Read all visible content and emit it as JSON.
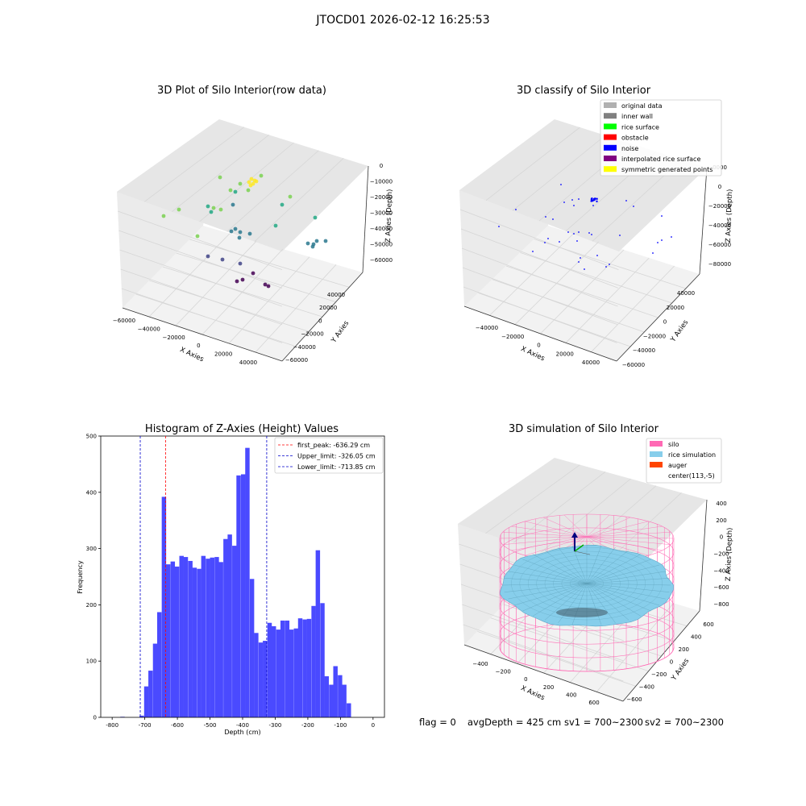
{
  "suptitle": "JTOCD01 2026-02-12 16:25:53",
  "footer": {
    "flag": "flag = 0",
    "avg_depth": "avgDepth = 425 cm",
    "sv1": "sv1 = 700~2300",
    "sv2": "sv2 = 700~2300"
  },
  "colors": {
    "histogram_bar": "#4a4aff",
    "first_peak_line": "#ff0000",
    "limit_lines": "#0000cc",
    "silo": "#ff69b4",
    "rice_simulation": "#87ceeb",
    "auger": "#ff4500",
    "noise": "#0000ff"
  },
  "chart_data": [
    {
      "type": "scatter3d",
      "title": "3D Plot of Silo Interior(row data)",
      "xlabel": "X Axies",
      "ylabel": "Y Axies",
      "zlabel": "Z Axies (Depth)",
      "x_ticks": [
        "−60000",
        "−40000",
        "−20000",
        "0",
        "20000",
        "40000"
      ],
      "y_ticks": [
        "−60000",
        "−40000",
        "−20000",
        "0",
        "20000",
        "40000"
      ],
      "z_ticks": [
        "0",
        "−10000",
        "−20000",
        "−30000",
        "−40000",
        "−50000",
        "−60000"
      ],
      "colormap": "viridis"
    },
    {
      "type": "scatter3d",
      "title": "3D classify of Silo Interior",
      "xlabel": "X Axies",
      "ylabel": "Y Axies",
      "zlabel": "Z Axies (Depth)",
      "x_ticks": [
        "−40000",
        "−20000",
        "0",
        "20000",
        "40000"
      ],
      "y_ticks": [
        "−60000",
        "−40000",
        "−20000",
        "0",
        "20000",
        "40000"
      ],
      "z_ticks": [
        "0000",
        "0",
        "−20000",
        "−40000",
        "−60000",
        "−80000"
      ],
      "legend": [
        {
          "label": "original data",
          "color": "#b0b0b0"
        },
        {
          "label": "inner wall",
          "color": "#808080"
        },
        {
          "label": "rice surface",
          "color": "#00ff00"
        },
        {
          "label": "obstacle",
          "color": "#ff0000"
        },
        {
          "label": "noise",
          "color": "#0000ff"
        },
        {
          "label": "interpolated rice surface",
          "color": "#800080"
        },
        {
          "label": "symmetric generated points",
          "color": "#ffff00"
        }
      ]
    },
    {
      "type": "bar",
      "title": "Histogram of Z-Axies (Height) Values",
      "xlabel": "Depth (cm)",
      "ylabel": "Frequency",
      "xlim": [
        -835,
        35
      ],
      "ylim": [
        0,
        500
      ],
      "x_ticks": [
        -800,
        -700,
        -600,
        -500,
        -400,
        -300,
        -200,
        -100,
        0
      ],
      "y_ticks": [
        0,
        100,
        200,
        300,
        400,
        500
      ],
      "bin_width": 13.5,
      "bins_start": [
        -775,
        -716,
        -702,
        -689,
        -675,
        -662,
        -648,
        -635,
        -621,
        -608,
        -594,
        -581,
        -567,
        -554,
        -540,
        -527,
        -513,
        -500,
        -486,
        -473,
        -459,
        -446,
        -432,
        -419,
        -405,
        -392,
        -378,
        -365,
        -351,
        -338,
        -324,
        -311,
        -297,
        -284,
        -270,
        -257,
        -243,
        -230,
        -216,
        -203,
        -189,
        -176,
        -162,
        -149,
        -135,
        -122,
        -108,
        -95,
        -81,
        -68,
        -54,
        -41,
        -27,
        -14
      ],
      "values": [
        1,
        3,
        55,
        83,
        131,
        187,
        392,
        272,
        277,
        268,
        287,
        285,
        278,
        266,
        264,
        287,
        282,
        284,
        285,
        276,
        317,
        325,
        305,
        430,
        432,
        479,
        246,
        150,
        133,
        136,
        168,
        162,
        156,
        172,
        172,
        156,
        158,
        176,
        174,
        175,
        198,
        297,
        203,
        73,
        58,
        91,
        75,
        58,
        25,
        0,
        0,
        0,
        0,
        0
      ],
      "vlines": [
        {
          "label": "first_peak: -636.29 cm",
          "x": -636.29,
          "color": "#ff0000"
        },
        {
          "label": "Upper_limit: -326.05 cm",
          "x": -326.05,
          "color": "#0000cc"
        },
        {
          "label": "Lower_limit: -713.85 cm",
          "x": -713.85,
          "color": "#0000cc"
        }
      ]
    },
    {
      "type": "surface3d",
      "title": "3D simulation of Silo Interior",
      "xlabel": "X Axies",
      "ylabel": "Y Axies",
      "zlabel": "Z Axies (Depth)",
      "x_ticks": [
        "−400",
        "−200",
        "0",
        "200",
        "400",
        "600"
      ],
      "y_ticks": [
        "−600",
        "−400",
        "−200",
        "0",
        "200",
        "400",
        "600"
      ],
      "z_ticks": [
        "400",
        "200",
        "0",
        "−200",
        "−400",
        "−600",
        "−800"
      ],
      "legend": [
        {
          "label": "silo",
          "color": "#ff69b4"
        },
        {
          "label": "rice simulation",
          "color": "#87ceeb"
        },
        {
          "label": "auger",
          "color": "#ff4500"
        },
        {
          "label": "center(113,-5)",
          "color": "#ffffff"
        }
      ]
    }
  ]
}
